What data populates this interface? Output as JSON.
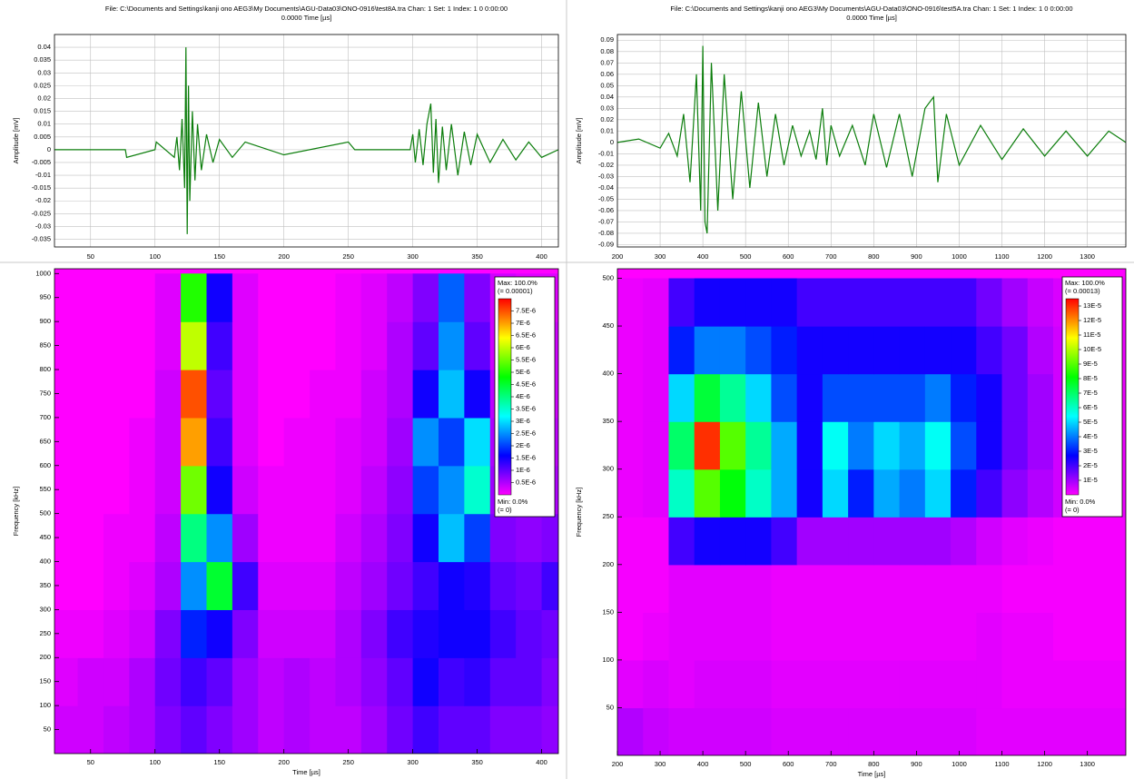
{
  "chart_data": [
    {
      "type": "line",
      "title": "File: C:\\Documents and Settings\\kanji ono AEG3\\My Documents\\AGU-Data03\\ONO-0916\\test8A.tra  Chan: 1  Set: 1  Index: 1  0  0:00:00",
      "subtitle": "0.0000  Time [µs]",
      "y_label": "Amplitude [mV]",
      "color": "#0b7d0b",
      "grid": true,
      "xlim": [
        22,
        413
      ],
      "xticks": [
        50,
        100,
        150,
        200,
        250,
        300,
        350,
        400
      ],
      "ylim": [
        -0.038,
        0.045
      ],
      "yticks": [
        0.04,
        0.035,
        0.03,
        0.025,
        0.02,
        0.015,
        0.01,
        0.005,
        0,
        -0.005,
        -0.01,
        -0.015,
        -0.02,
        -0.025,
        -0.03,
        -0.035
      ],
      "x": [
        22,
        77,
        78,
        100,
        101,
        115,
        117,
        119,
        121,
        123,
        124,
        125,
        126,
        127,
        129,
        131,
        133,
        136,
        140,
        145,
        150,
        160,
        170,
        200,
        250,
        255,
        298,
        300,
        302,
        305,
        308,
        311,
        314,
        316,
        318,
        320,
        323,
        326,
        330,
        335,
        340,
        345,
        350,
        360,
        370,
        380,
        390,
        400,
        413
      ],
      "values": [
        0,
        0,
        -0.003,
        0,
        0.003,
        -0.003,
        0.005,
        -0.008,
        0.012,
        -0.015,
        0.04,
        -0.033,
        0.025,
        -0.02,
        0.015,
        -0.012,
        0.01,
        -0.008,
        0.006,
        -0.005,
        0.004,
        -0.003,
        0.003,
        -0.002,
        0.003,
        0,
        0,
        0.006,
        -0.005,
        0.008,
        -0.006,
        0.01,
        0.018,
        -0.009,
        0.012,
        -0.013,
        0.009,
        -0.008,
        0.01,
        -0.01,
        0.007,
        -0.006,
        0.006,
        -0.005,
        0.004,
        -0.004,
        0.003,
        -0.003,
        0
      ]
    },
    {
      "type": "heatmap",
      "x_label": "Time [µs]",
      "y_label": "Frequency [kHz]",
      "xlim": [
        22,
        413
      ],
      "xticks": [
        50,
        100,
        150,
        200,
        250,
        300,
        350,
        400
      ],
      "ylim": [
        0,
        1010
      ],
      "yticks": [
        50,
        100,
        150,
        200,
        250,
        300,
        350,
        400,
        450,
        500,
        550,
        600,
        650,
        700,
        750,
        800,
        850,
        900,
        950,
        1000
      ],
      "colormap": [
        "#ff00ff",
        "#0000ff",
        "#00ffff",
        "#00ff00",
        "#ffff00",
        "#ff0000"
      ],
      "zlim": [
        0,
        8e-06
      ],
      "legend_top": [
        "Max: 100.0%",
        "(= 0.00001)"
      ],
      "legend_bottom": [
        "Min: 0.0%",
        "(= 0)"
      ],
      "colorbar_ticks": [
        {
          "value": 7.5e-06,
          "label": "7.5E-6"
        },
        {
          "value": 7e-06,
          "label": "7E-6"
        },
        {
          "value": 6.5e-06,
          "label": "6.5E-6"
        },
        {
          "value": 6e-06,
          "label": "6E-6"
        },
        {
          "value": 5.5e-06,
          "label": "5.5E-6"
        },
        {
          "value": 5e-06,
          "label": "5E-6"
        },
        {
          "value": 4.5e-06,
          "label": "4.5E-6"
        },
        {
          "value": 4e-06,
          "label": "4E-6"
        },
        {
          "value": 3.5e-06,
          "label": "3.5E-6"
        },
        {
          "value": 3e-06,
          "label": "3E-6"
        },
        {
          "value": 2.5e-06,
          "label": "2.5E-6"
        },
        {
          "value": 2e-06,
          "label": "2E-6"
        },
        {
          "value": 1.5e-06,
          "label": "1.5E-6"
        },
        {
          "value": 1e-06,
          "label": "1E-6"
        },
        {
          "value": 5e-07,
          "label": "0.5E-6"
        }
      ],
      "x": [
        30,
        50,
        70,
        90,
        110,
        130,
        150,
        170,
        190,
        210,
        230,
        250,
        270,
        290,
        310,
        330,
        350,
        370,
        390,
        410
      ],
      "y": [
        50,
        150,
        250,
        350,
        450,
        550,
        650,
        750,
        850,
        950
      ],
      "z": [
        [
          3e-07,
          3e-07,
          4e-07,
          5e-07,
          8e-07,
          1e-06,
          8e-07,
          6e-07,
          4e-07,
          5e-07,
          4e-07,
          4e-07,
          6e-07,
          9e-07,
          1.2e-06,
          1e-06,
          1e-06,
          8e-07,
          8e-07,
          7e-07
        ],
        [
          2e-07,
          3e-07,
          3e-07,
          5e-07,
          9e-07,
          1.2e-06,
          1e-06,
          6e-07,
          4e-07,
          5e-07,
          4e-07,
          5e-07,
          7e-07,
          1e-06,
          1.5e-06,
          1.2e-06,
          1.3e-06,
          1e-06,
          1e-06,
          8e-07
        ],
        [
          1e-07,
          1e-07,
          2e-07,
          3e-07,
          8e-07,
          1.8e-06,
          1.5e-06,
          8e-07,
          3e-07,
          3e-07,
          3e-07,
          5e-07,
          8e-07,
          1.2e-06,
          1.4e-06,
          1.5e-06,
          1.5e-06,
          1.2e-06,
          1e-06,
          9e-07
        ],
        [
          0,
          0,
          1e-07,
          2e-07,
          5e-07,
          2.5e-06,
          4.5e-06,
          1.2e-06,
          2e-07,
          2e-07,
          2e-07,
          4e-07,
          6e-07,
          9e-07,
          1.2e-06,
          1.5e-06,
          1.4e-06,
          1e-06,
          9e-07,
          1.2e-06
        ],
        [
          0,
          0,
          1e-07,
          1e-07,
          4e-07,
          4e-06,
          2.5e-06,
          6e-07,
          1e-07,
          1e-07,
          1e-07,
          3e-07,
          5e-07,
          8e-07,
          1.5e-06,
          2.8e-06,
          2e-06,
          8e-07,
          7e-07,
          8e-07
        ],
        [
          0,
          0,
          0,
          1e-07,
          3e-07,
          5.5e-06,
          1.5e-06,
          3e-07,
          1e-07,
          1e-07,
          1e-07,
          2e-07,
          4e-07,
          7e-07,
          2e-06,
          2.5e-06,
          3.5e-06,
          6e-07,
          5e-07,
          5e-07
        ],
        [
          0,
          0,
          0,
          1e-07,
          3e-07,
          7e-06,
          1.2e-06,
          2e-07,
          0,
          1e-07,
          1e-07,
          2e-07,
          3e-07,
          6e-07,
          2.5e-06,
          2e-06,
          3e-06,
          5e-07,
          4e-07,
          4e-07
        ],
        [
          0,
          0,
          0,
          0,
          3e-07,
          7.5e-06,
          1e-06,
          2e-07,
          0,
          0,
          1e-07,
          1e-07,
          3e-07,
          5e-07,
          1.5e-06,
          2.8e-06,
          1.5e-06,
          4e-07,
          3e-07,
          3e-07
        ],
        [
          0,
          0,
          0,
          0,
          2e-07,
          6e-06,
          1.2e-06,
          2e-07,
          0,
          0,
          0,
          1e-07,
          2e-07,
          5e-07,
          1e-06,
          2.5e-06,
          1e-06,
          3e-07,
          3e-07,
          3e-07
        ],
        [
          0,
          0,
          0,
          0,
          2e-07,
          5e-06,
          1.5e-06,
          2e-07,
          0,
          0,
          0,
          1e-07,
          2e-07,
          4e-07,
          8e-07,
          2.2e-06,
          8e-07,
          3e-07,
          2e-07,
          2e-07
        ]
      ]
    },
    {
      "type": "line",
      "title": "File: C:\\Documents and Settings\\kanji ono AEG3\\My Documents\\AGU-Data03\\ONO-0916\\test5A.tra  Chan: 1  Set: 1  Index: 1  0  0:00:00",
      "subtitle": "0.0000  Time [µs]",
      "y_label": "Amplitude [mV]",
      "color": "#0b7d0b",
      "grid": true,
      "xlim": [
        200,
        1390
      ],
      "xticks": [
        200,
        300,
        400,
        500,
        600,
        700,
        800,
        900,
        1000,
        1100,
        1200,
        1300
      ],
      "ylim": [
        -0.092,
        0.095
      ],
      "yticks": [
        0.09,
        0.08,
        0.07,
        0.06,
        0.05,
        0.04,
        0.03,
        0.02,
        0.01,
        0,
        -0.01,
        -0.02,
        -0.03,
        -0.04,
        -0.05,
        -0.06,
        -0.07,
        -0.08,
        -0.09
      ],
      "x": [
        200,
        250,
        300,
        320,
        340,
        355,
        370,
        385,
        395,
        400,
        405,
        410,
        420,
        435,
        450,
        470,
        490,
        510,
        530,
        550,
        570,
        590,
        610,
        630,
        650,
        665,
        680,
        690,
        700,
        720,
        750,
        780,
        800,
        830,
        860,
        890,
        920,
        940,
        950,
        970,
        1000,
        1050,
        1100,
        1150,
        1200,
        1250,
        1300,
        1350,
        1390
      ],
      "values": [
        0,
        0.003,
        -0.005,
        0.008,
        -0.012,
        0.025,
        -0.035,
        0.06,
        -0.06,
        0.085,
        -0.07,
        -0.08,
        0.07,
        -0.06,
        0.06,
        -0.05,
        0.045,
        -0.04,
        0.035,
        -0.03,
        0.025,
        -0.02,
        0.015,
        -0.012,
        0.01,
        -0.015,
        0.03,
        -0.02,
        0.015,
        -0.012,
        0.015,
        -0.02,
        0.025,
        -0.022,
        0.025,
        -0.03,
        0.03,
        0.04,
        -0.035,
        0.025,
        -0.02,
        0.015,
        -0.015,
        0.012,
        -0.012,
        0.01,
        -0.012,
        0.01,
        0
      ]
    },
    {
      "type": "heatmap",
      "x_label": "Time [µs]",
      "y_label": "Frequency [kHz]",
      "xlim": [
        200,
        1390
      ],
      "xticks": [
        200,
        300,
        400,
        500,
        600,
        700,
        800,
        900,
        1000,
        1100,
        1200,
        1300
      ],
      "ylim": [
        0,
        510
      ],
      "yticks": [
        50,
        100,
        150,
        200,
        250,
        300,
        350,
        400,
        450,
        500
      ],
      "colormap": [
        "#ff00ff",
        "#0000ff",
        "#00ffff",
        "#00ff00",
        "#ffff00",
        "#ff0000"
      ],
      "zlim": [
        0,
        0.000135
      ],
      "legend_top": [
        "Max: 100.0%",
        "(= 0.00013)"
      ],
      "legend_bottom": [
        "Min: 0.0%",
        "(= 0)"
      ],
      "colorbar_ticks": [
        {
          "value": 0.00013,
          "label": "13E-5"
        },
        {
          "value": 0.00012,
          "label": "12E-5"
        },
        {
          "value": 0.00011,
          "label": "11E-5"
        },
        {
          "value": 0.0001,
          "label": "10E-5"
        },
        {
          "value": 9e-05,
          "label": "9E-5"
        },
        {
          "value": 8e-05,
          "label": "8E-5"
        },
        {
          "value": 7e-05,
          "label": "7E-5"
        },
        {
          "value": 6e-05,
          "label": "6E-5"
        },
        {
          "value": 5e-05,
          "label": "5E-5"
        },
        {
          "value": 4e-05,
          "label": "4E-5"
        },
        {
          "value": 3e-05,
          "label": "3E-5"
        },
        {
          "value": 2e-05,
          "label": "2E-5"
        },
        {
          "value": 1e-05,
          "label": "1E-5"
        }
      ],
      "x": [
        230,
        290,
        350,
        410,
        470,
        530,
        590,
        650,
        710,
        770,
        830,
        890,
        950,
        1010,
        1070,
        1130,
        1190,
        1250,
        1310,
        1370
      ],
      "y": [
        25,
        75,
        125,
        175,
        225,
        275,
        325,
        375,
        425,
        475
      ],
      "z": [
        [
          8e-06,
          6e-06,
          5e-06,
          5e-06,
          5e-06,
          5e-06,
          4e-06,
          4e-06,
          4e-06,
          4e-06,
          4e-06,
          4e-06,
          4e-06,
          4e-06,
          3e-06,
          3e-06,
          3e-06,
          3e-06,
          3e-06,
          3e-06
        ],
        [
          3e-06,
          4e-06,
          3e-06,
          4e-06,
          4e-06,
          4e-06,
          3e-06,
          3e-06,
          3e-06,
          3e-06,
          3e-06,
          3e-06,
          3e-06,
          3e-06,
          3e-06,
          2e-06,
          2e-06,
          2e-06,
          2e-06,
          2e-06
        ],
        [
          1e-06,
          2e-06,
          3e-06,
          3e-06,
          3e-06,
          3e-06,
          2e-06,
          2e-06,
          2e-06,
          2e-06,
          2e-06,
          2e-06,
          2e-06,
          2e-06,
          3e-06,
          2e-06,
          2e-06,
          1e-06,
          1e-06,
          1e-06
        ],
        [
          1e-06,
          1e-06,
          3e-06,
          3e-06,
          3e-06,
          3e-06,
          2e-06,
          2e-06,
          2e-06,
          2e-06,
          2e-06,
          2e-06,
          2e-06,
          2e-06,
          2e-06,
          1e-06,
          1e-06,
          1e-06,
          1e-06,
          1e-06
        ],
        [
          1e-06,
          1e-06,
          2e-05,
          2.5e-05,
          2.5e-05,
          2.5e-05,
          2e-05,
          1e-05,
          1e-05,
          1e-05,
          1e-05,
          1e-05,
          1e-05,
          8e-06,
          5e-06,
          3e-06,
          2e-06,
          1e-06,
          1e-06,
          1e-06
        ],
        [
          2e-06,
          3e-06,
          6e-05,
          9e-05,
          8e-05,
          6e-05,
          4.5e-05,
          2.5e-05,
          5e-05,
          3e-05,
          4.5e-05,
          4e-05,
          5e-05,
          3e-05,
          2e-05,
          1.2e-05,
          8e-06,
          5e-06,
          3e-06,
          2e-06
        ],
        [
          2e-06,
          3e-06,
          7e-05,
          0.00013,
          9e-05,
          6.5e-05,
          4.5e-05,
          2.5e-05,
          5.5e-05,
          4e-05,
          5e-05,
          4.5e-05,
          5.5e-05,
          3.5e-05,
          2.5e-05,
          1.5e-05,
          1e-05,
          5e-06,
          3e-06,
          2e-06
        ],
        [
          2e-06,
          3e-06,
          5e-05,
          7.5e-05,
          6.5e-05,
          5e-05,
          3.5e-05,
          2.5e-05,
          3.5e-05,
          3.5e-05,
          3.5e-05,
          3.5e-05,
          4e-05,
          3e-05,
          2.5e-05,
          1.5e-05,
          1e-05,
          5e-06,
          3e-06,
          2e-06
        ],
        [
          2e-06,
          3e-06,
          3e-05,
          4e-05,
          4e-05,
          3.5e-05,
          3e-05,
          2.5e-05,
          2.5e-05,
          2.5e-05,
          2.5e-05,
          2.5e-05,
          2.5e-05,
          2.5e-05,
          2e-05,
          1.5e-05,
          8e-06,
          5e-06,
          3e-06,
          2e-06
        ],
        [
          2e-06,
          3e-06,
          2e-05,
          2.5e-05,
          2.5e-05,
          2.5e-05,
          2.5e-05,
          2e-05,
          2e-05,
          2e-05,
          2e-05,
          2e-05,
          2e-05,
          2e-05,
          1.5e-05,
          1e-05,
          6e-06,
          4e-06,
          3e-06,
          2e-06
        ]
      ]
    }
  ]
}
